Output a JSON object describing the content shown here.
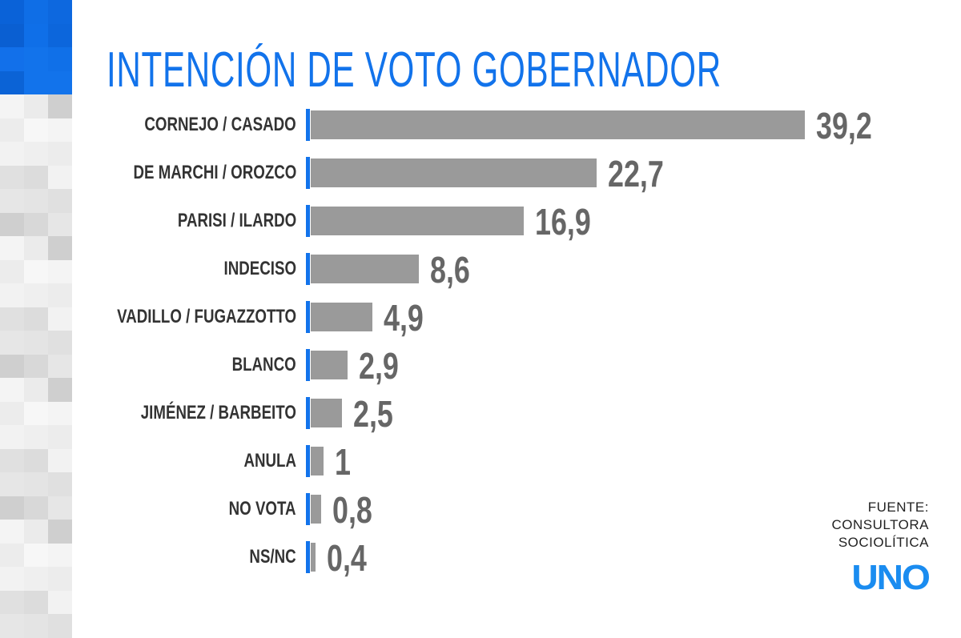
{
  "chart_data": {
    "type": "bar",
    "orientation": "horizontal",
    "title": "INTENCIÓN DE VOTO GOBERNADOR",
    "categories": [
      "CORNEJO / CASADO",
      "DE MARCHI / OROZCO",
      "PARISI / ILARDO",
      "INDECISO",
      "VADILLO / FUGAZZOTTO",
      "BLANCO",
      "JIMÉNEZ / BARBEITO",
      "ANULA",
      "NO VOTA",
      "NS/NC"
    ],
    "values": [
      39.2,
      22.7,
      16.9,
      8.6,
      4.9,
      2.9,
      2.5,
      1,
      0.8,
      0.4
    ],
    "value_labels": [
      "39,2",
      "22,7",
      "16,9",
      "8,6",
      "4,9",
      "2,9",
      "2,5",
      "1",
      "0,8",
      "0,4"
    ],
    "xlabel": "",
    "ylabel": "",
    "xlim": [
      0,
      39.2
    ],
    "grid": false,
    "colors": {
      "bar": "#9a9a9a",
      "axis": "#1273eb",
      "title": "#1273eb",
      "value": "#666666"
    }
  },
  "source": {
    "line1": "FUENTE:",
    "line2": "CONSULTORA",
    "line3": "SOCIOLÍTICA"
  },
  "logo": "UNO"
}
